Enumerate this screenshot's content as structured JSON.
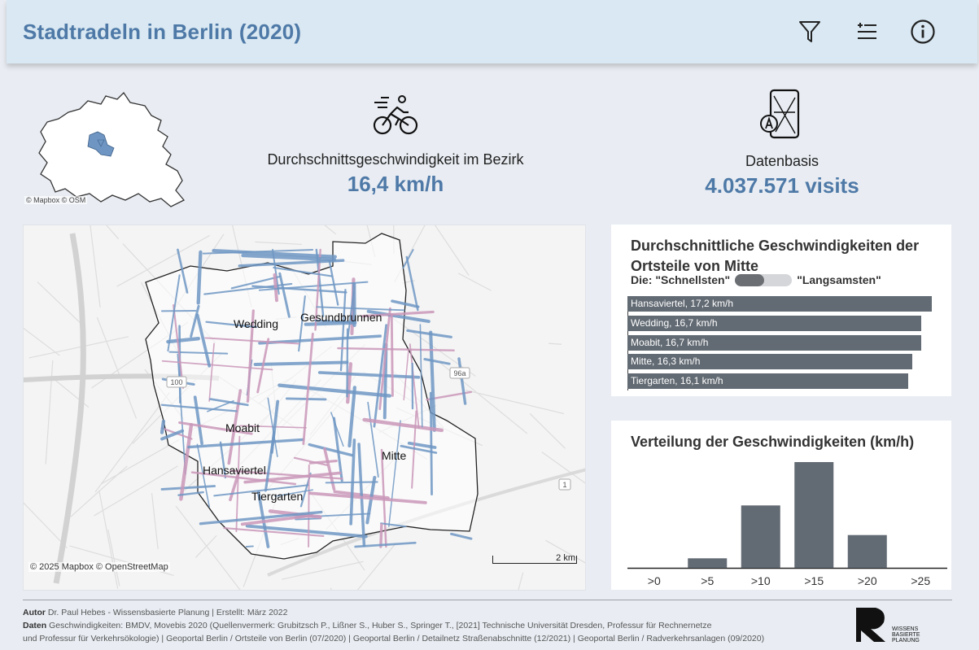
{
  "header": {
    "title": "Stadtradeln in Berlin (2020)",
    "icons": [
      "filter-icon",
      "legend-list-icon",
      "info-icon"
    ]
  },
  "minimap": {
    "credit": "© Mapbox  © OSM"
  },
  "kpis": {
    "speed": {
      "label": "Durchschnittsgeschwindigkeit im Bezirk",
      "value": "16,4 km/h",
      "icon": "cyclist-icon"
    },
    "data": {
      "label": "Datenbasis",
      "value": "4.037.571 visits",
      "icon": "map-phone-icon"
    }
  },
  "map": {
    "labels": [
      "Wedding",
      "Gesundbrunnen",
      "Moabit",
      "Hansaviertel",
      "Tiergarten",
      "Mitte"
    ],
    "road_badges": [
      "96a",
      "1",
      "100"
    ],
    "credit": "© 2025 Mapbox  © OpenStreetMap",
    "scale": "2 km"
  },
  "ranking": {
    "title": "Durchschnittliche Geschwindigkeiten der Ortsteile von Mitte",
    "sub_prefix": "Die: \"Schnellsten\"",
    "sub_suffix": "\"Langsamsten\"",
    "bars": [
      {
        "label": "Hansaviertel, 17,2 km/h",
        "value": 17.2
      },
      {
        "label": "Wedding, 16,7 km/h",
        "value": 16.7
      },
      {
        "label": "Moabit, 16,7 km/h",
        "value": 16.7
      },
      {
        "label": "Mitte, 16,3 km/h",
        "value": 16.3
      },
      {
        "label": "Tiergarten, 16,1 km/h",
        "value": 16.1
      }
    ]
  },
  "histogram": {
    "title": "Verteilung der Geschwindigkeiten (km/h)"
  },
  "chart_data": {
    "type": "bar",
    "title": "Verteilung der Geschwindigkeiten (km/h)",
    "categories": [
      ">0",
      ">5",
      ">10",
      ">15",
      ">20",
      ">25"
    ],
    "values": [
      0,
      9,
      59,
      100,
      31,
      0
    ],
    "ylim": [
      0,
      100
    ],
    "grid": false,
    "color": "#626a73"
  },
  "footer": {
    "author_label": "Autor",
    "author_text": "Dr. Paul Hebes - Wissensbasierte Planung | Erstellt: März 2022",
    "data_label": "Daten",
    "data_text": "Geschwindigkeiten: BMDV, Movebis 2020 (Quellenvermerk: Grubitzsch P., Lißner S., Huber S., Springer T., [2021] Technische Universität Dresden, Professur für Rechnernetze",
    "data_text2": "und Professur für Verkehrsökologie) | Geoportal Berlin / Ortsteile von Berlin (07/2020) | Geoportal Berlin / Detailnetz Straßenabschnitte (12/2021) | Geoportal Berlin / Radverkehrsanlagen (09/2020)",
    "logo_text": [
      "WISSENS",
      "BASIERTE",
      "PLANUNG"
    ]
  },
  "colors": {
    "accent": "#4e79a7",
    "bar": "#626a73",
    "route_blue": "#6f96c3",
    "route_pink": "#c996b8"
  }
}
